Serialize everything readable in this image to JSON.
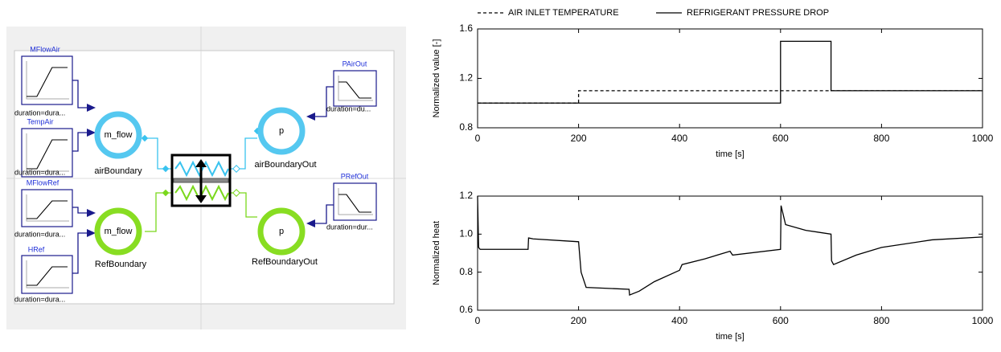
{
  "diagram": {
    "sources": [
      {
        "name": "MFlowAir",
        "parameter": "duration=dura..."
      },
      {
        "name": "TempAir",
        "parameter": "duration=dura..."
      },
      {
        "name": "MFlowRef",
        "parameter": "duration=dura..."
      },
      {
        "name": "HRef",
        "parameter": "duration=dura..."
      },
      {
        "name": "PAirOut",
        "parameter": "duration=du..."
      },
      {
        "name": "PRefOut",
        "parameter": "duration=dur..."
      }
    ],
    "boundaries": [
      {
        "symbol": "m_flow",
        "name": "airBoundary"
      },
      {
        "symbol": "p",
        "name": "airBoundaryOut"
      },
      {
        "symbol": "m_flow",
        "name": "RefBoundary"
      },
      {
        "symbol": "p",
        "name": "RefBoundaryOut"
      }
    ]
  },
  "chart_data": [
    {
      "type": "line",
      "xlabel": "time [s]",
      "ylabel": "Normalized value [-]",
      "xlim": [
        0,
        1000
      ],
      "xticks": [
        0,
        200,
        400,
        600,
        800,
        1000
      ],
      "ylim": [
        0.8,
        1.6
      ],
      "yticks": [
        0.8,
        1.2,
        1.6
      ],
      "legend": "top",
      "series": [
        {
          "name": "AIR INLET TEMPERATURE",
          "color": "#000000",
          "style": "dashed",
          "x": [
            0,
            200,
            200,
            1000
          ],
          "values": [
            1.0,
            1.0,
            1.1,
            1.1
          ]
        },
        {
          "name": "REFRIGERANT PRESSURE DROP",
          "color": "#000000",
          "style": "solid",
          "x": [
            0,
            600,
            600,
            700,
            700,
            1000
          ],
          "values": [
            1.0,
            1.0,
            1.5,
            1.5,
            1.1,
            1.1
          ]
        }
      ]
    },
    {
      "type": "line",
      "xlabel": "time [s]",
      "ylabel": "Normalized heat",
      "xlim": [
        0,
        1000
      ],
      "xticks": [
        0,
        200,
        400,
        600,
        800,
        1000
      ],
      "ylim": [
        0.6,
        1.2
      ],
      "yticks": [
        0.6,
        0.8,
        {
          "value": 1,
          "label": "1.0"
        },
        1.2
      ],
      "series": [
        {
          "color": "#000000",
          "style": "solid",
          "x": [
            0,
            2,
            5,
            100,
            101,
            110,
            200,
            205,
            215,
            300,
            301,
            320,
            350,
            400,
            405,
            450,
            500,
            505,
            600,
            601,
            610,
            650,
            700,
            701,
            705,
            750,
            800,
            900,
            1000
          ],
          "values": [
            1.2,
            0.93,
            0.92,
            0.92,
            0.98,
            0.975,
            0.96,
            0.8,
            0.72,
            0.71,
            0.68,
            0.7,
            0.75,
            0.81,
            0.84,
            0.87,
            0.91,
            0.89,
            0.92,
            1.15,
            1.05,
            1.02,
            1.0,
            0.86,
            0.84,
            0.89,
            0.93,
            0.97,
            0.985
          ]
        }
      ]
    }
  ]
}
